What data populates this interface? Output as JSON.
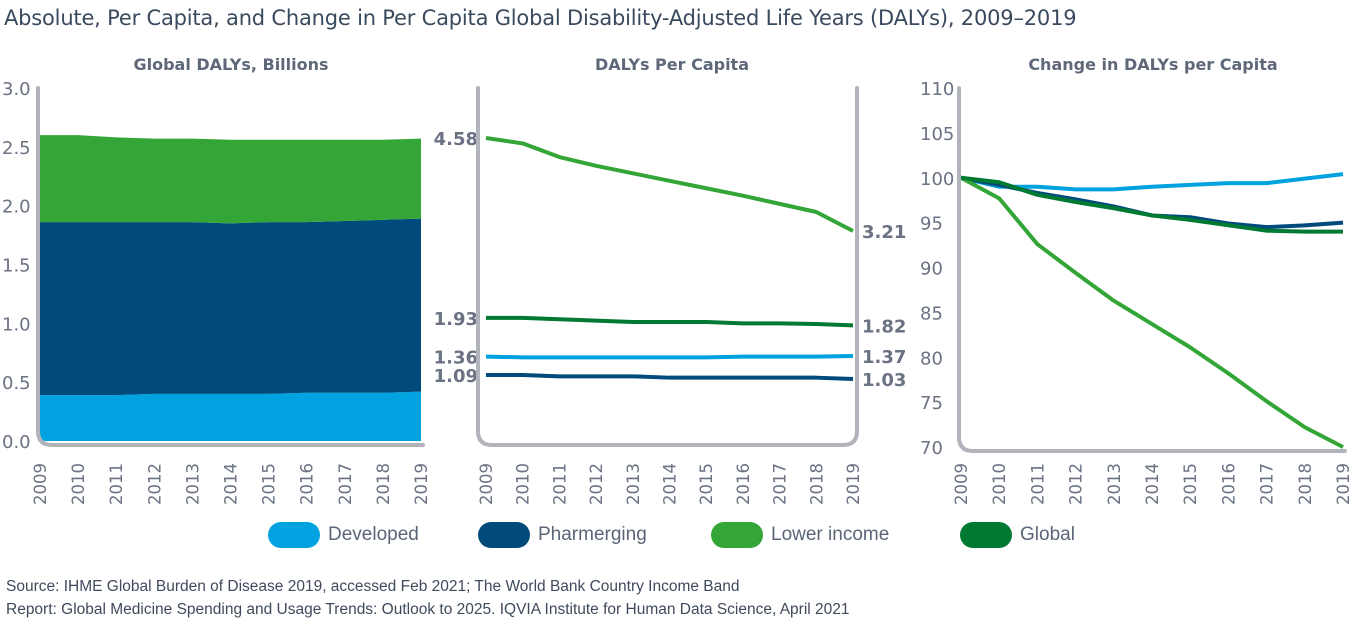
{
  "title": "Absolute, Per Capita, and Change in Per Capita Global Disability-Adjusted Life Years (DALYs), 2009–2019",
  "colors": {
    "developed": "#00a3e0",
    "pharmerging": "#004a7c",
    "lower_income": "#33a637",
    "global": "#007a33",
    "axis": "#b2b4bc",
    "tick_text": "#6a7283",
    "panel_title": "#5f6878"
  },
  "legend": [
    {
      "key": "developed",
      "label": "Developed"
    },
    {
      "key": "pharmerging",
      "label": "Pharmerging"
    },
    {
      "key": "lower_income",
      "label": "Lower income"
    },
    {
      "key": "global",
      "label": "Global"
    }
  ],
  "source": {
    "line1": "Source: IHME Global Burden of Disease 2019, accessed Feb 2021; The World Bank Country Income Band",
    "line2": "Report: Global Medicine Spending and Usage Trends: Outlook to 2025. IQVIA Institute for Human Data Science, April 2021"
  },
  "chart_data": [
    {
      "type": "area",
      "stacked": true,
      "title": "Global DALYs, Billions",
      "xlabel": "",
      "ylabel": "",
      "x": [
        "2009",
        "2010",
        "2011",
        "2012",
        "2013",
        "2014",
        "2015",
        "2016",
        "2017",
        "2018",
        "2019"
      ],
      "ylim": [
        0,
        3.0
      ],
      "yticks": [
        "0.0",
        "0.5",
        "1.0",
        "1.5",
        "2.0",
        "2.5",
        "3.0"
      ],
      "grid": false,
      "series": [
        {
          "name": "Developed",
          "key": "developed",
          "values": [
            0.39,
            0.39,
            0.39,
            0.4,
            0.4,
            0.4,
            0.4,
            0.41,
            0.41,
            0.41,
            0.42
          ]
        },
        {
          "name": "Pharmerging",
          "key": "pharmerging",
          "values": [
            1.47,
            1.47,
            1.47,
            1.46,
            1.46,
            1.45,
            1.46,
            1.45,
            1.46,
            1.47,
            1.47
          ]
        },
        {
          "name": "Lower income",
          "key": "lower_income",
          "values": [
            0.74,
            0.74,
            0.72,
            0.71,
            0.71,
            0.71,
            0.7,
            0.7,
            0.69,
            0.68,
            0.68
          ]
        }
      ]
    },
    {
      "type": "line",
      "title": "DALYs Per Capita",
      "xlabel": "",
      "ylabel": "",
      "x": [
        "2009",
        "2010",
        "2011",
        "2012",
        "2013",
        "2014",
        "2015",
        "2016",
        "2017",
        "2018",
        "2019"
      ],
      "ylim": [
        0.3,
        5.3
      ],
      "grid": false,
      "series": [
        {
          "name": "Lower income",
          "key": "lower_income",
          "start_label": "4.58",
          "end_label": "3.21",
          "values": [
            4.58,
            4.5,
            4.3,
            4.17,
            4.06,
            3.95,
            3.84,
            3.73,
            3.61,
            3.49,
            3.21
          ]
        },
        {
          "name": "Global",
          "key": "global",
          "start_label": "1.93",
          "end_label": "1.82",
          "values": [
            1.93,
            1.93,
            1.91,
            1.89,
            1.87,
            1.87,
            1.87,
            1.85,
            1.85,
            1.84,
            1.82
          ]
        },
        {
          "name": "Developed",
          "key": "developed",
          "start_label": "1.36",
          "end_label": "1.37",
          "values": [
            1.36,
            1.35,
            1.35,
            1.35,
            1.35,
            1.35,
            1.35,
            1.36,
            1.36,
            1.36,
            1.37
          ]
        },
        {
          "name": "Pharmerging",
          "key": "pharmerging",
          "start_label": "1.09",
          "end_label": "1.03",
          "values": [
            1.09,
            1.09,
            1.07,
            1.07,
            1.07,
            1.05,
            1.05,
            1.05,
            1.05,
            1.05,
            1.03
          ]
        }
      ]
    },
    {
      "type": "line",
      "title": "Change in DALYs per Capita",
      "xlabel": "",
      "ylabel": "",
      "x": [
        "2009",
        "2010",
        "2011",
        "2012",
        "2013",
        "2014",
        "2015",
        "2016",
        "2017",
        "2018",
        "2019"
      ],
      "ylim": [
        70,
        110
      ],
      "yticks": [
        "70",
        "75",
        "80",
        "85",
        "90",
        "95",
        "100",
        "105",
        "110"
      ],
      "grid": false,
      "series": [
        {
          "name": "Developed",
          "key": "developed",
          "values": [
            100,
            99.0,
            99.0,
            98.7,
            98.7,
            99.0,
            99.2,
            99.4,
            99.4,
            99.9,
            100.4
          ]
        },
        {
          "name": "Pharmerging",
          "key": "pharmerging",
          "values": [
            100,
            99.2,
            98.3,
            97.6,
            96.8,
            95.8,
            95.6,
            94.9,
            94.5,
            94.7,
            95.0
          ]
        },
        {
          "name": "Lower income",
          "key": "lower_income",
          "values": [
            100,
            97.7,
            92.6,
            89.4,
            86.3,
            83.7,
            81.1,
            78.2,
            75.1,
            72.2,
            70.0
          ]
        },
        {
          "name": "Global",
          "key": "global",
          "values": [
            100,
            99.5,
            98.1,
            97.3,
            96.6,
            95.8,
            95.3,
            94.7,
            94.1,
            94.0,
            94.0
          ]
        }
      ]
    }
  ]
}
